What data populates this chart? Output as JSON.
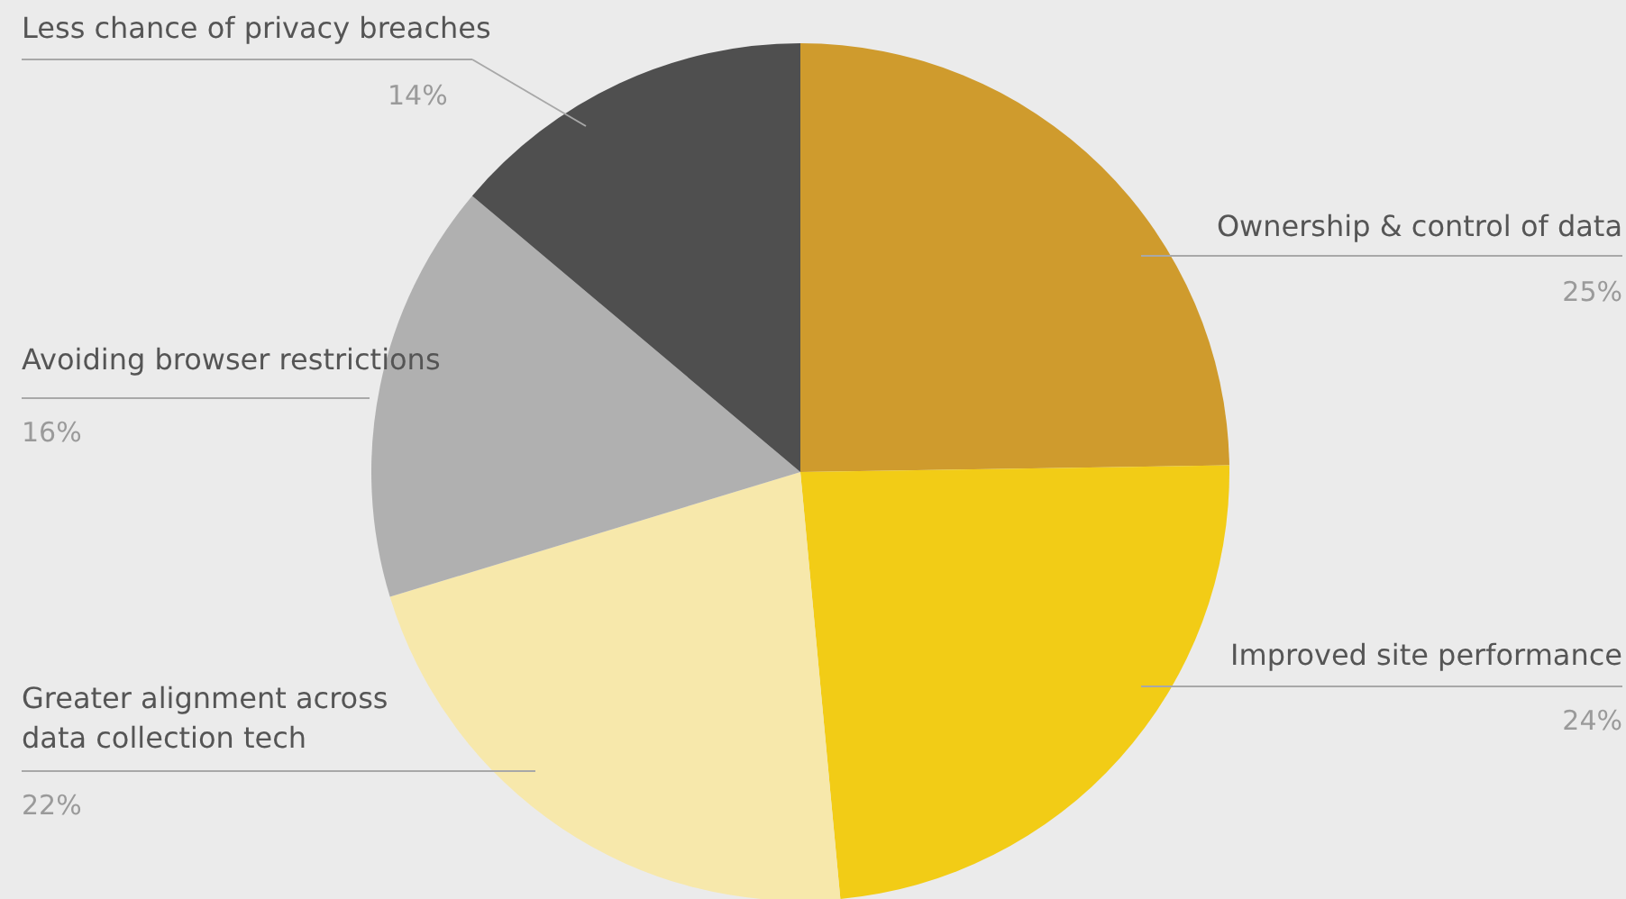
{
  "chart_data": {
    "type": "pie",
    "categories": [
      "Ownership & control of data",
      "Improved site performance",
      "Greater alignment across data collection tech",
      "Avoiding browser restrictions",
      "Less chance of privacy breaches"
    ],
    "values": [
      25,
      24,
      22,
      16,
      14
    ],
    "value_labels": [
      "25%",
      "24%",
      "22%",
      "16%",
      "14%"
    ],
    "colors": [
      "#cf9b2d",
      "#f2cc16",
      "#f7e8ab",
      "#b0b0b0",
      "#4f4f4f"
    ]
  }
}
